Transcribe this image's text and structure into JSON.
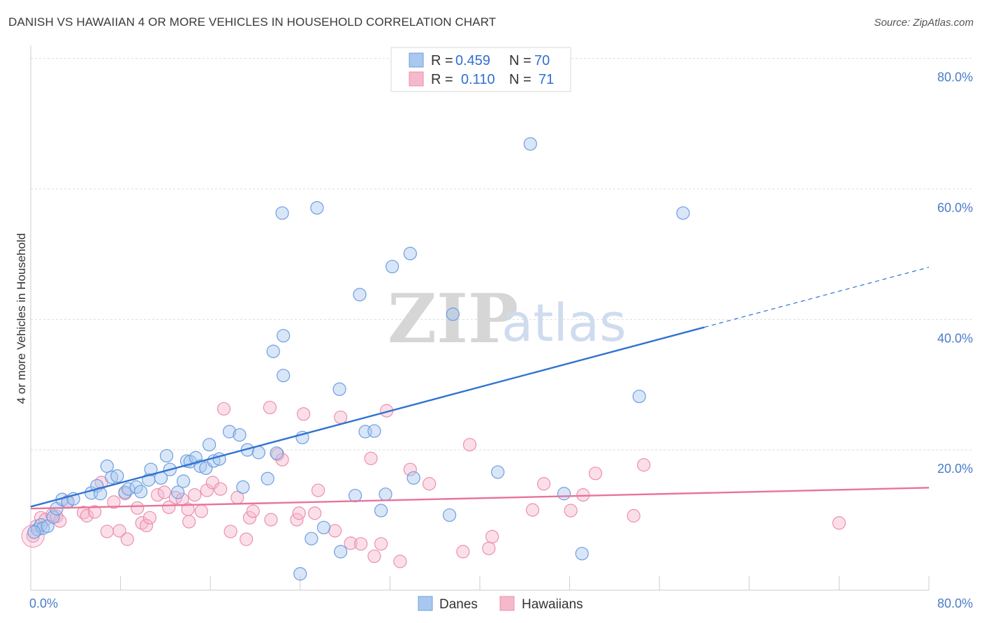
{
  "header": {
    "title": "DANISH VS HAWAIIAN 4 OR MORE VEHICLES IN HOUSEHOLD CORRELATION CHART",
    "source": "Source: ZipAtlas.com"
  },
  "watermark": {
    "zip": "ZIP",
    "atlas": "atlas"
  },
  "legend": {
    "danes": {
      "r_label": "R =",
      "r_value": "0.459",
      "n_label": "N =",
      "n_value": "70"
    },
    "hawaiians": {
      "r_label": "R =",
      "r_value": "0.110",
      "n_label": "N =",
      "n_value": "71"
    }
  },
  "bottom_legend": {
    "danes": "Danes",
    "hawaiians": "Hawaiians"
  },
  "colors": {
    "danes_fill": "#a9c8f0",
    "danes_stroke": "#6d9ee0",
    "danes_line": "#2f74d0",
    "hawaiians_fill": "#f6b8cb",
    "hawaiians_stroke": "#ec8fae",
    "hawaiians_line": "#e8739c",
    "grid": "#dddddd",
    "tick_label": "#4a7cc8"
  },
  "chart_data": {
    "type": "scatter",
    "title": "DANISH VS HAWAIIAN 4 OR MORE VEHICLES IN HOUSEHOLD CORRELATION CHART",
    "xlabel": "",
    "ylabel": "4 or more Vehicles in Household",
    "xlim": [
      0,
      80
    ],
    "ylim": [
      -1.5,
      82
    ],
    "x_tick_labels": {
      "left": "0.0%",
      "right": "80.0%"
    },
    "y_ticks": [
      {
        "value": 20,
        "label": "20.0%"
      },
      {
        "value": 40,
        "label": "40.0%"
      },
      {
        "value": 60,
        "label": "60.0%"
      },
      {
        "value": 80,
        "label": "80.0%"
      }
    ],
    "grid": true,
    "legend_position": "top-center",
    "series": [
      {
        "name": "Danes",
        "R": 0.459,
        "N": 70,
        "trend": {
          "x0": 0,
          "y0": 11.3,
          "x1": 60,
          "y1": 38.8,
          "dashed_to_x": 80,
          "dashed_to_y": 48.0
        },
        "points": [
          [
            0.6,
            7.8
          ],
          [
            0.9,
            8.5
          ],
          [
            1.1,
            8.0
          ],
          [
            1.5,
            8.3
          ],
          [
            2.0,
            9.7
          ],
          [
            2.3,
            11.0
          ],
          [
            2.8,
            12.4
          ],
          [
            3.3,
            12.0
          ],
          [
            3.8,
            12.5
          ],
          [
            5.4,
            13.4
          ],
          [
            5.9,
            14.5
          ],
          [
            6.2,
            13.3
          ],
          [
            6.8,
            17.5
          ],
          [
            7.2,
            15.8
          ],
          [
            7.7,
            16.0
          ],
          [
            8.4,
            13.5
          ],
          [
            8.7,
            14.0
          ],
          [
            9.4,
            14.3
          ],
          [
            9.8,
            13.6
          ],
          [
            10.5,
            15.4
          ],
          [
            10.7,
            17.0
          ],
          [
            11.6,
            15.7
          ],
          [
            12.1,
            19.1
          ],
          [
            12.4,
            17.0
          ],
          [
            13.1,
            13.5
          ],
          [
            13.6,
            15.2
          ],
          [
            13.9,
            18.3
          ],
          [
            14.2,
            18.2
          ],
          [
            14.7,
            18.8
          ],
          [
            15.1,
            17.5
          ],
          [
            15.6,
            17.2
          ],
          [
            15.9,
            20.8
          ],
          [
            16.3,
            18.3
          ],
          [
            16.8,
            18.6
          ],
          [
            17.7,
            22.8
          ],
          [
            18.6,
            22.3
          ],
          [
            18.9,
            14.3
          ],
          [
            19.3,
            20.0
          ],
          [
            20.3,
            19.6
          ],
          [
            21.1,
            15.6
          ],
          [
            21.9,
            19.5
          ],
          [
            21.6,
            35.1
          ],
          [
            22.5,
            31.4
          ],
          [
            22.4,
            56.3
          ],
          [
            22.5,
            37.5
          ],
          [
            24.2,
            21.9
          ],
          [
            25.0,
            6.4
          ],
          [
            25.5,
            57.1
          ],
          [
            26.1,
            8.1
          ],
          [
            27.5,
            29.3
          ],
          [
            27.6,
            4.4
          ],
          [
            28.9,
            13.0
          ],
          [
            29.3,
            43.8
          ],
          [
            29.8,
            22.8
          ],
          [
            30.6,
            22.9
          ],
          [
            31.2,
            10.7
          ],
          [
            31.6,
            13.2
          ],
          [
            32.2,
            48.1
          ],
          [
            33.8,
            50.1
          ],
          [
            34.1,
            15.7
          ],
          [
            37.3,
            10.0
          ],
          [
            37.6,
            40.8
          ],
          [
            41.6,
            16.6
          ],
          [
            44.5,
            66.9
          ],
          [
            47.5,
            13.3
          ],
          [
            49.1,
            4.1
          ],
          [
            54.2,
            28.2
          ],
          [
            58.1,
            56.3
          ],
          [
            0.3,
            7.4
          ],
          [
            24.0,
            1.0
          ]
        ]
      },
      {
        "name": "Hawaiians",
        "R": 0.11,
        "N": 71,
        "trend": {
          "x0": 0,
          "y0": 11.0,
          "x1": 80,
          "y1": 14.2
        },
        "points": [
          [
            0.5,
            8.3
          ],
          [
            0.9,
            9.6
          ],
          [
            1.3,
            9.3
          ],
          [
            1.9,
            10.0
          ],
          [
            2.3,
            9.8
          ],
          [
            2.6,
            9.1
          ],
          [
            3.3,
            12.1
          ],
          [
            4.7,
            10.4
          ],
          [
            5.0,
            9.9
          ],
          [
            5.7,
            10.5
          ],
          [
            6.3,
            15.0
          ],
          [
            6.8,
            7.5
          ],
          [
            7.4,
            12.0
          ],
          [
            7.9,
            7.6
          ],
          [
            8.4,
            13.3
          ],
          [
            8.6,
            6.3
          ],
          [
            9.5,
            11.1
          ],
          [
            9.9,
            8.8
          ],
          [
            10.3,
            8.4
          ],
          [
            10.6,
            9.6
          ],
          [
            11.3,
            13.1
          ],
          [
            11.9,
            13.5
          ],
          [
            12.3,
            11.2
          ],
          [
            12.9,
            12.7
          ],
          [
            13.5,
            12.4
          ],
          [
            14.1,
            9.0
          ],
          [
            14.6,
            13.1
          ],
          [
            15.2,
            10.6
          ],
          [
            15.7,
            13.8
          ],
          [
            16.2,
            15.0
          ],
          [
            16.9,
            14.0
          ],
          [
            17.2,
            26.3
          ],
          [
            17.8,
            7.5
          ],
          [
            18.4,
            12.7
          ],
          [
            19.2,
            6.3
          ],
          [
            19.5,
            9.6
          ],
          [
            19.8,
            10.6
          ],
          [
            21.4,
            9.3
          ],
          [
            21.3,
            26.5
          ],
          [
            22.0,
            19.3
          ],
          [
            22.4,
            18.5
          ],
          [
            23.7,
            9.3
          ],
          [
            23.9,
            10.3
          ],
          [
            24.3,
            25.5
          ],
          [
            25.3,
            10.3
          ],
          [
            25.6,
            13.8
          ],
          [
            27.1,
            7.6
          ],
          [
            27.6,
            25.0
          ],
          [
            28.5,
            5.7
          ],
          [
            29.4,
            5.6
          ],
          [
            30.3,
            18.7
          ],
          [
            30.6,
            3.7
          ],
          [
            31.2,
            5.6
          ],
          [
            31.7,
            26.0
          ],
          [
            32.9,
            2.9
          ],
          [
            33.8,
            17.0
          ],
          [
            35.5,
            14.8
          ],
          [
            38.5,
            4.4
          ],
          [
            39.1,
            20.8
          ],
          [
            40.8,
            4.9
          ],
          [
            41.1,
            6.7
          ],
          [
            44.7,
            10.8
          ],
          [
            45.7,
            14.8
          ],
          [
            48.1,
            10.7
          ],
          [
            49.2,
            13.1
          ],
          [
            50.3,
            16.4
          ],
          [
            53.7,
            9.9
          ],
          [
            54.6,
            17.7
          ],
          [
            72.0,
            8.8
          ],
          [
            0.2,
            6.8
          ],
          [
            14.0,
            10.9
          ]
        ]
      }
    ]
  }
}
